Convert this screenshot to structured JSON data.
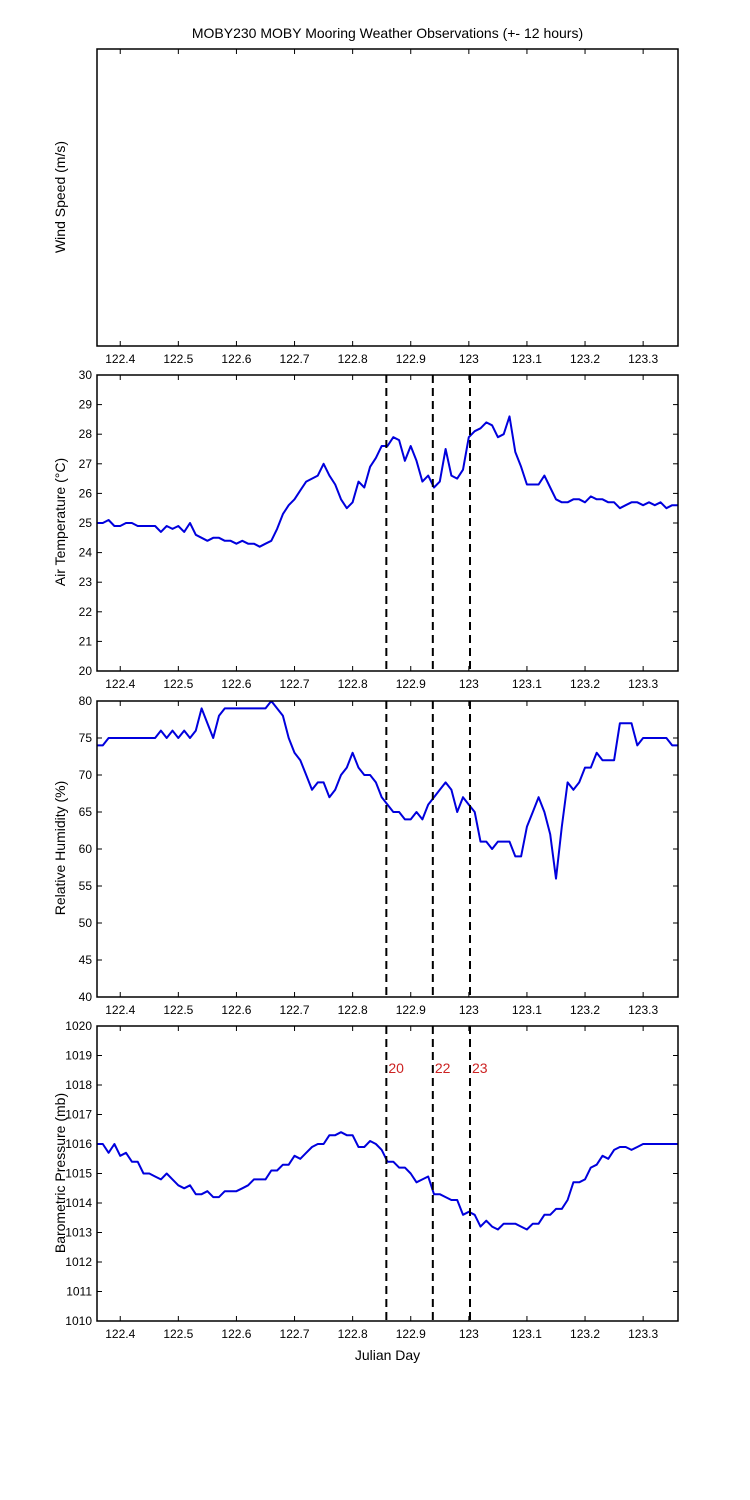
{
  "figure": {
    "title": "MOBY230 MOBY Mooring Weather Observations (+- 12 hours)",
    "xlabel": "Julian Day"
  },
  "colors": {
    "series": "#0000dd",
    "marker_label": "#cc2222",
    "axes": "#000000"
  },
  "chart_data": [
    {
      "type": "line",
      "name": "wind",
      "ylabel": "Wind Speed (m/s)",
      "xlim": [
        122.36,
        123.36
      ],
      "xticks": [
        122.4,
        122.5,
        122.6,
        122.7,
        122.8,
        122.9,
        123,
        123.1,
        123.2,
        123.3
      ],
      "yticks": [],
      "series": [],
      "markers": []
    },
    {
      "type": "line",
      "name": "temperature",
      "ylabel": "Air Temperature (°C)",
      "xlim": [
        122.36,
        123.36
      ],
      "ylim": [
        20,
        30
      ],
      "xticks": [
        122.4,
        122.5,
        122.6,
        122.7,
        122.8,
        122.9,
        123,
        123.1,
        123.2,
        123.3
      ],
      "yticks": [
        20,
        21,
        22,
        23,
        24,
        25,
        26,
        27,
        28,
        29,
        30
      ],
      "markers": [
        122.858,
        122.938,
        123.002
      ],
      "series": [
        {
          "x": [
            122.36,
            122.37,
            122.38,
            122.39,
            122.4,
            122.41,
            122.42,
            122.43,
            122.44,
            122.45,
            122.46,
            122.47,
            122.48,
            122.49,
            122.5,
            122.51,
            122.52,
            122.53,
            122.54,
            122.55,
            122.56,
            122.57,
            122.58,
            122.59,
            122.6,
            122.61,
            122.62,
            122.63,
            122.64,
            122.65,
            122.66,
            122.67,
            122.68,
            122.69,
            122.7,
            122.71,
            122.72,
            122.73,
            122.74,
            122.75,
            122.76,
            122.77,
            122.78,
            122.79,
            122.8,
            122.81,
            122.82,
            122.83,
            122.84,
            122.85,
            122.86,
            122.87,
            122.88,
            122.89,
            122.9,
            122.91,
            122.92,
            122.93,
            122.94,
            122.95,
            122.96,
            122.97,
            122.98,
            122.99,
            123.0,
            123.01,
            123.02,
            123.03,
            123.04,
            123.05,
            123.06,
            123.07,
            123.08,
            123.09,
            123.1,
            123.11,
            123.12,
            123.13,
            123.14,
            123.15,
            123.16,
            123.17,
            123.18,
            123.19,
            123.2,
            123.21,
            123.22,
            123.23,
            123.24,
            123.25,
            123.26,
            123.27,
            123.28,
            123.29,
            123.3,
            123.31,
            123.32,
            123.33,
            123.34,
            123.35,
            123.36
          ],
          "y": [
            25.0,
            25.0,
            25.1,
            24.9,
            24.9,
            25.0,
            25.0,
            24.9,
            24.9,
            24.9,
            24.9,
            24.7,
            24.9,
            24.8,
            24.9,
            24.7,
            25.0,
            24.6,
            24.5,
            24.4,
            24.5,
            24.5,
            24.4,
            24.4,
            24.3,
            24.4,
            24.3,
            24.3,
            24.2,
            24.3,
            24.4,
            24.8,
            25.3,
            25.6,
            25.8,
            26.1,
            26.4,
            26.5,
            26.6,
            27.0,
            26.6,
            26.3,
            25.8,
            25.5,
            25.7,
            26.4,
            26.2,
            26.9,
            27.2,
            27.6,
            27.6,
            27.9,
            27.8,
            27.1,
            27.6,
            27.1,
            26.4,
            26.6,
            26.2,
            26.4,
            27.5,
            26.6,
            26.5,
            26.8,
            27.9,
            28.1,
            28.2,
            28.4,
            28.3,
            27.9,
            28.0,
            28.6,
            27.4,
            26.9,
            26.3,
            26.3,
            26.3,
            26.6,
            26.2,
            25.8,
            25.7,
            25.7,
            25.8,
            25.8,
            25.7,
            25.9,
            25.8,
            25.8,
            25.7,
            25.7,
            25.5,
            25.6,
            25.7,
            25.7,
            25.6,
            25.7,
            25.6,
            25.7,
            25.5,
            25.6,
            25.6
          ]
        }
      ]
    },
    {
      "type": "line",
      "name": "humidity",
      "ylabel": "Relative Humidity (%)",
      "xlim": [
        122.36,
        123.36
      ],
      "ylim": [
        40,
        80
      ],
      "xticks": [
        122.4,
        122.5,
        122.6,
        122.7,
        122.8,
        122.9,
        123,
        123.1,
        123.2,
        123.3
      ],
      "yticks": [
        40,
        45,
        50,
        55,
        60,
        65,
        70,
        75,
        80
      ],
      "markers": [
        122.858,
        122.938,
        123.002
      ],
      "series": [
        {
          "x": [
            122.36,
            122.37,
            122.38,
            122.39,
            122.4,
            122.41,
            122.42,
            122.43,
            122.44,
            122.45,
            122.46,
            122.47,
            122.48,
            122.49,
            122.5,
            122.51,
            122.52,
            122.53,
            122.54,
            122.55,
            122.56,
            122.57,
            122.58,
            122.59,
            122.6,
            122.61,
            122.62,
            122.63,
            122.64,
            122.65,
            122.66,
            122.67,
            122.68,
            122.69,
            122.7,
            122.71,
            122.72,
            122.73,
            122.74,
            122.75,
            122.76,
            122.77,
            122.78,
            122.79,
            122.8,
            122.81,
            122.82,
            122.83,
            122.84,
            122.85,
            122.86,
            122.87,
            122.88,
            122.89,
            122.9,
            122.91,
            122.92,
            122.93,
            122.94,
            122.95,
            122.96,
            122.97,
            122.98,
            122.99,
            123.0,
            123.01,
            123.02,
            123.03,
            123.04,
            123.05,
            123.06,
            123.07,
            123.08,
            123.09,
            123.1,
            123.11,
            123.12,
            123.13,
            123.14,
            123.15,
            123.16,
            123.17,
            123.18,
            123.19,
            123.2,
            123.21,
            123.22,
            123.23,
            123.24,
            123.25,
            123.26,
            123.27,
            123.28,
            123.29,
            123.3,
            123.31,
            123.32,
            123.33,
            123.34,
            123.35,
            123.36
          ],
          "y": [
            74,
            74,
            75,
            75,
            75,
            75,
            75,
            75,
            75,
            75,
            75,
            76,
            75,
            76,
            75,
            76,
            75,
            76,
            79,
            77,
            75,
            78,
            79,
            79,
            79,
            79,
            79,
            79,
            79,
            79,
            80,
            79,
            78,
            75,
            73,
            72,
            70,
            68,
            69,
            69,
            67,
            68,
            70,
            71,
            73,
            71,
            70,
            70,
            69,
            67,
            66,
            65,
            65,
            64,
            64,
            65,
            64,
            66,
            67,
            68,
            69,
            68,
            65,
            67,
            66,
            65,
            61,
            61,
            60,
            61,
            61,
            61,
            59,
            59,
            63,
            65,
            67,
            65,
            62,
            56,
            63,
            69,
            68,
            69,
            71,
            71,
            73,
            72,
            72,
            72,
            77,
            77,
            77,
            74,
            75,
            75,
            75,
            75,
            75,
            74,
            74
          ]
        }
      ]
    },
    {
      "type": "line",
      "name": "pressure",
      "ylabel": "Barometric Pressure (mb)",
      "xlim": [
        122.36,
        123.36
      ],
      "ylim": [
        1010,
        1020
      ],
      "xticks": [
        122.4,
        122.5,
        122.6,
        122.7,
        122.8,
        122.9,
        123,
        123.1,
        123.2,
        123.3
      ],
      "yticks": [
        1010,
        1011,
        1012,
        1013,
        1014,
        1015,
        1016,
        1017,
        1018,
        1019,
        1020
      ],
      "markers": [
        122.858,
        122.938,
        123.002
      ],
      "marker_labels": [
        "20",
        "22",
        "23"
      ],
      "marker_label_y": 1018.4,
      "series": [
        {
          "x": [
            122.36,
            122.37,
            122.38,
            122.39,
            122.4,
            122.41,
            122.42,
            122.43,
            122.44,
            122.45,
            122.46,
            122.47,
            122.48,
            122.49,
            122.5,
            122.51,
            122.52,
            122.53,
            122.54,
            122.55,
            122.56,
            122.57,
            122.58,
            122.59,
            122.6,
            122.61,
            122.62,
            122.63,
            122.64,
            122.65,
            122.66,
            122.67,
            122.68,
            122.69,
            122.7,
            122.71,
            122.72,
            122.73,
            122.74,
            122.75,
            122.76,
            122.77,
            122.78,
            122.79,
            122.8,
            122.81,
            122.82,
            122.83,
            122.84,
            122.85,
            122.86,
            122.87,
            122.88,
            122.89,
            122.9,
            122.91,
            122.92,
            122.93,
            122.94,
            122.95,
            122.96,
            122.97,
            122.98,
            122.99,
            123.0,
            123.01,
            123.02,
            123.03,
            123.04,
            123.05,
            123.06,
            123.07,
            123.08,
            123.09,
            123.1,
            123.11,
            123.12,
            123.13,
            123.14,
            123.15,
            123.16,
            123.17,
            123.18,
            123.19,
            123.2,
            123.21,
            123.22,
            123.23,
            123.24,
            123.25,
            123.26,
            123.27,
            123.28,
            123.29,
            123.3,
            123.31,
            123.32,
            123.33,
            123.34,
            123.35,
            123.36
          ],
          "y": [
            1016.0,
            1016.0,
            1015.7,
            1016.0,
            1015.6,
            1015.7,
            1015.4,
            1015.4,
            1015.0,
            1015.0,
            1014.9,
            1014.8,
            1015.0,
            1014.8,
            1014.6,
            1014.5,
            1014.6,
            1014.3,
            1014.3,
            1014.4,
            1014.2,
            1014.2,
            1014.4,
            1014.4,
            1014.4,
            1014.5,
            1014.6,
            1014.8,
            1014.8,
            1014.8,
            1015.1,
            1015.1,
            1015.3,
            1015.3,
            1015.6,
            1015.5,
            1015.7,
            1015.9,
            1016.0,
            1016.0,
            1016.3,
            1016.3,
            1016.4,
            1016.3,
            1016.3,
            1015.9,
            1015.9,
            1016.1,
            1016.0,
            1015.8,
            1015.4,
            1015.4,
            1015.2,
            1015.2,
            1015.0,
            1014.7,
            1014.8,
            1014.9,
            1014.3,
            1014.3,
            1014.2,
            1014.1,
            1014.1,
            1013.6,
            1013.7,
            1013.6,
            1013.2,
            1013.4,
            1013.2,
            1013.1,
            1013.3,
            1013.3,
            1013.3,
            1013.2,
            1013.1,
            1013.3,
            1013.3,
            1013.6,
            1013.6,
            1013.8,
            1013.8,
            1014.1,
            1014.7,
            1014.7,
            1014.8,
            1015.2,
            1015.3,
            1015.6,
            1015.5,
            1015.8,
            1015.9,
            1015.9,
            1015.8,
            1015.9,
            1016.0,
            1016.0,
            1016.0,
            1016.0,
            1016.0,
            1016.0,
            1016.0
          ]
        }
      ]
    }
  ]
}
